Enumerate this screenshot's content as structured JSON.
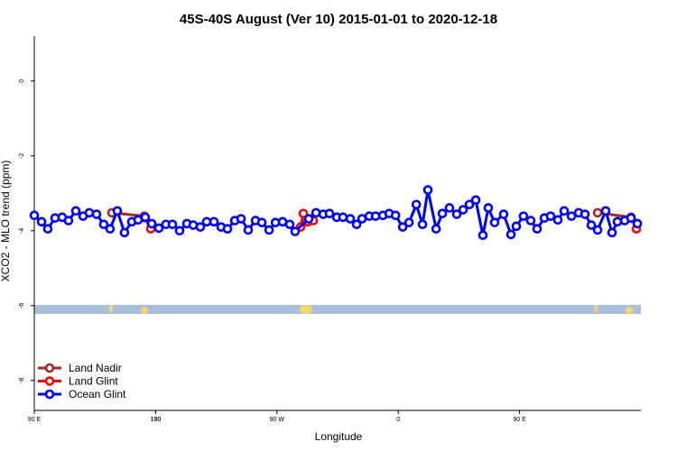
{
  "chart_data": {
    "type": "line",
    "title": "45S-40S August (Ver 10)   2015-01-01 to 2020-12-18",
    "x_label": "Longitude",
    "y_label": "XCO2 - MLO trend (ppm)",
    "xlim": [
      90,
      540
    ],
    "ylim": [
      -8.8,
      1.2
    ],
    "xticks": [
      {
        "value": 90,
        "label": "90 E"
      },
      180,
      {
        "value": 270,
        "label": "90 W"
      },
      {
        "value": 360,
        "label": "0"
      },
      {
        "value": 450,
        "label": "90 E"
      },
      180.0001
    ],
    "yticks": [
      0,
      -2,
      -4,
      -6,
      -8
    ],
    "legend": "bottom-left",
    "series": [
      {
        "name": "Land Nadir",
        "color": "#a52a2a",
        "x": [
          147.6,
          171.7,
          null,
          507.9,
          532.7
        ],
        "values": [
          -3.52,
          -3.61,
          null,
          -3.52,
          -3.64
        ]
      },
      {
        "name": "Land Glint",
        "color": "#ff0000",
        "x": [
          171.7,
          176.4,
          null,
          287.6,
          289.6,
          292.9,
          297.0,
          null,
          532.7,
          536.7
        ],
        "values": [
          -3.65,
          -3.95,
          null,
          -3.9,
          -3.54,
          -3.76,
          -3.73,
          null,
          -3.66,
          -3.95
        ]
      },
      {
        "name": "Ocean Glint",
        "color": "#0000ff",
        "x": [
          90,
          95.4,
          100.0,
          105.4,
          110.7,
          115.4,
          120.8,
          126.2,
          130.8,
          136.2,
          141.5,
          146.2,
          151.6,
          156.9,
          162.3,
          167.0,
          172.3,
          177.1,
          182.4,
          187.7,
          192.5,
          197.8,
          203.2,
          207.9,
          213.2,
          217.9,
          223.3,
          228.6,
          233.3,
          238.7,
          243.4,
          248.7,
          254.1,
          258.8,
          264.2,
          268.9,
          274.2,
          279.5,
          283.5,
          293.6,
          299.0,
          304.3,
          309.0,
          314.4,
          319.0,
          324.4,
          329.1,
          333.1,
          338.5,
          343.2,
          348.6,
          353.3,
          358.0,
          363.3,
          368.0,
          373.4,
          378.0,
          382.0,
          388.1,
          392.7,
          398.0,
          403.4,
          408.1,
          412.8,
          417.5,
          422.8,
          426.8,
          431.5,
          438.2,
          443.6,
          447.6,
          452.9,
          458.3,
          463.0,
          468.4,
          473.0,
          478.4,
          483.1,
          488.5,
          493.8,
          498.5,
          503.2,
          507.9,
          513.9,
          518.6,
          522.6,
          528.0,
          532.7,
          537.4
        ],
        "values": [
          -3.59,
          -3.76,
          -3.95,
          -3.66,
          -3.64,
          -3.73,
          -3.47,
          -3.61,
          -3.52,
          -3.56,
          -3.83,
          -3.95,
          -3.47,
          -4.05,
          -3.76,
          -3.71,
          -3.64,
          -3.81,
          -3.93,
          -3.83,
          -3.83,
          -4.0,
          -3.81,
          -3.85,
          -3.9,
          -3.76,
          -3.76,
          -3.9,
          -3.95,
          -3.73,
          -3.68,
          -3.98,
          -3.73,
          -3.78,
          -3.98,
          -3.78,
          -3.76,
          -3.83,
          -4.02,
          -3.68,
          -3.52,
          -3.56,
          -3.54,
          -3.64,
          -3.64,
          -3.68,
          -3.83,
          -3.68,
          -3.61,
          -3.61,
          -3.59,
          -3.54,
          -3.59,
          -3.9,
          -3.78,
          -3.3,
          -3.83,
          -2.91,
          -3.95,
          -3.54,
          -3.39,
          -3.56,
          -3.44,
          -3.3,
          -3.18,
          -4.12,
          -3.39,
          -3.78,
          -3.56,
          -4.1,
          -3.88,
          -3.61,
          -3.73,
          -3.95,
          -3.66,
          -3.61,
          -3.71,
          -3.47,
          -3.61,
          -3.52,
          -3.56,
          -3.85,
          -3.98,
          -3.47,
          -4.05,
          -3.76,
          -3.73,
          -3.66,
          -3.81
        ]
      }
    ]
  }
}
